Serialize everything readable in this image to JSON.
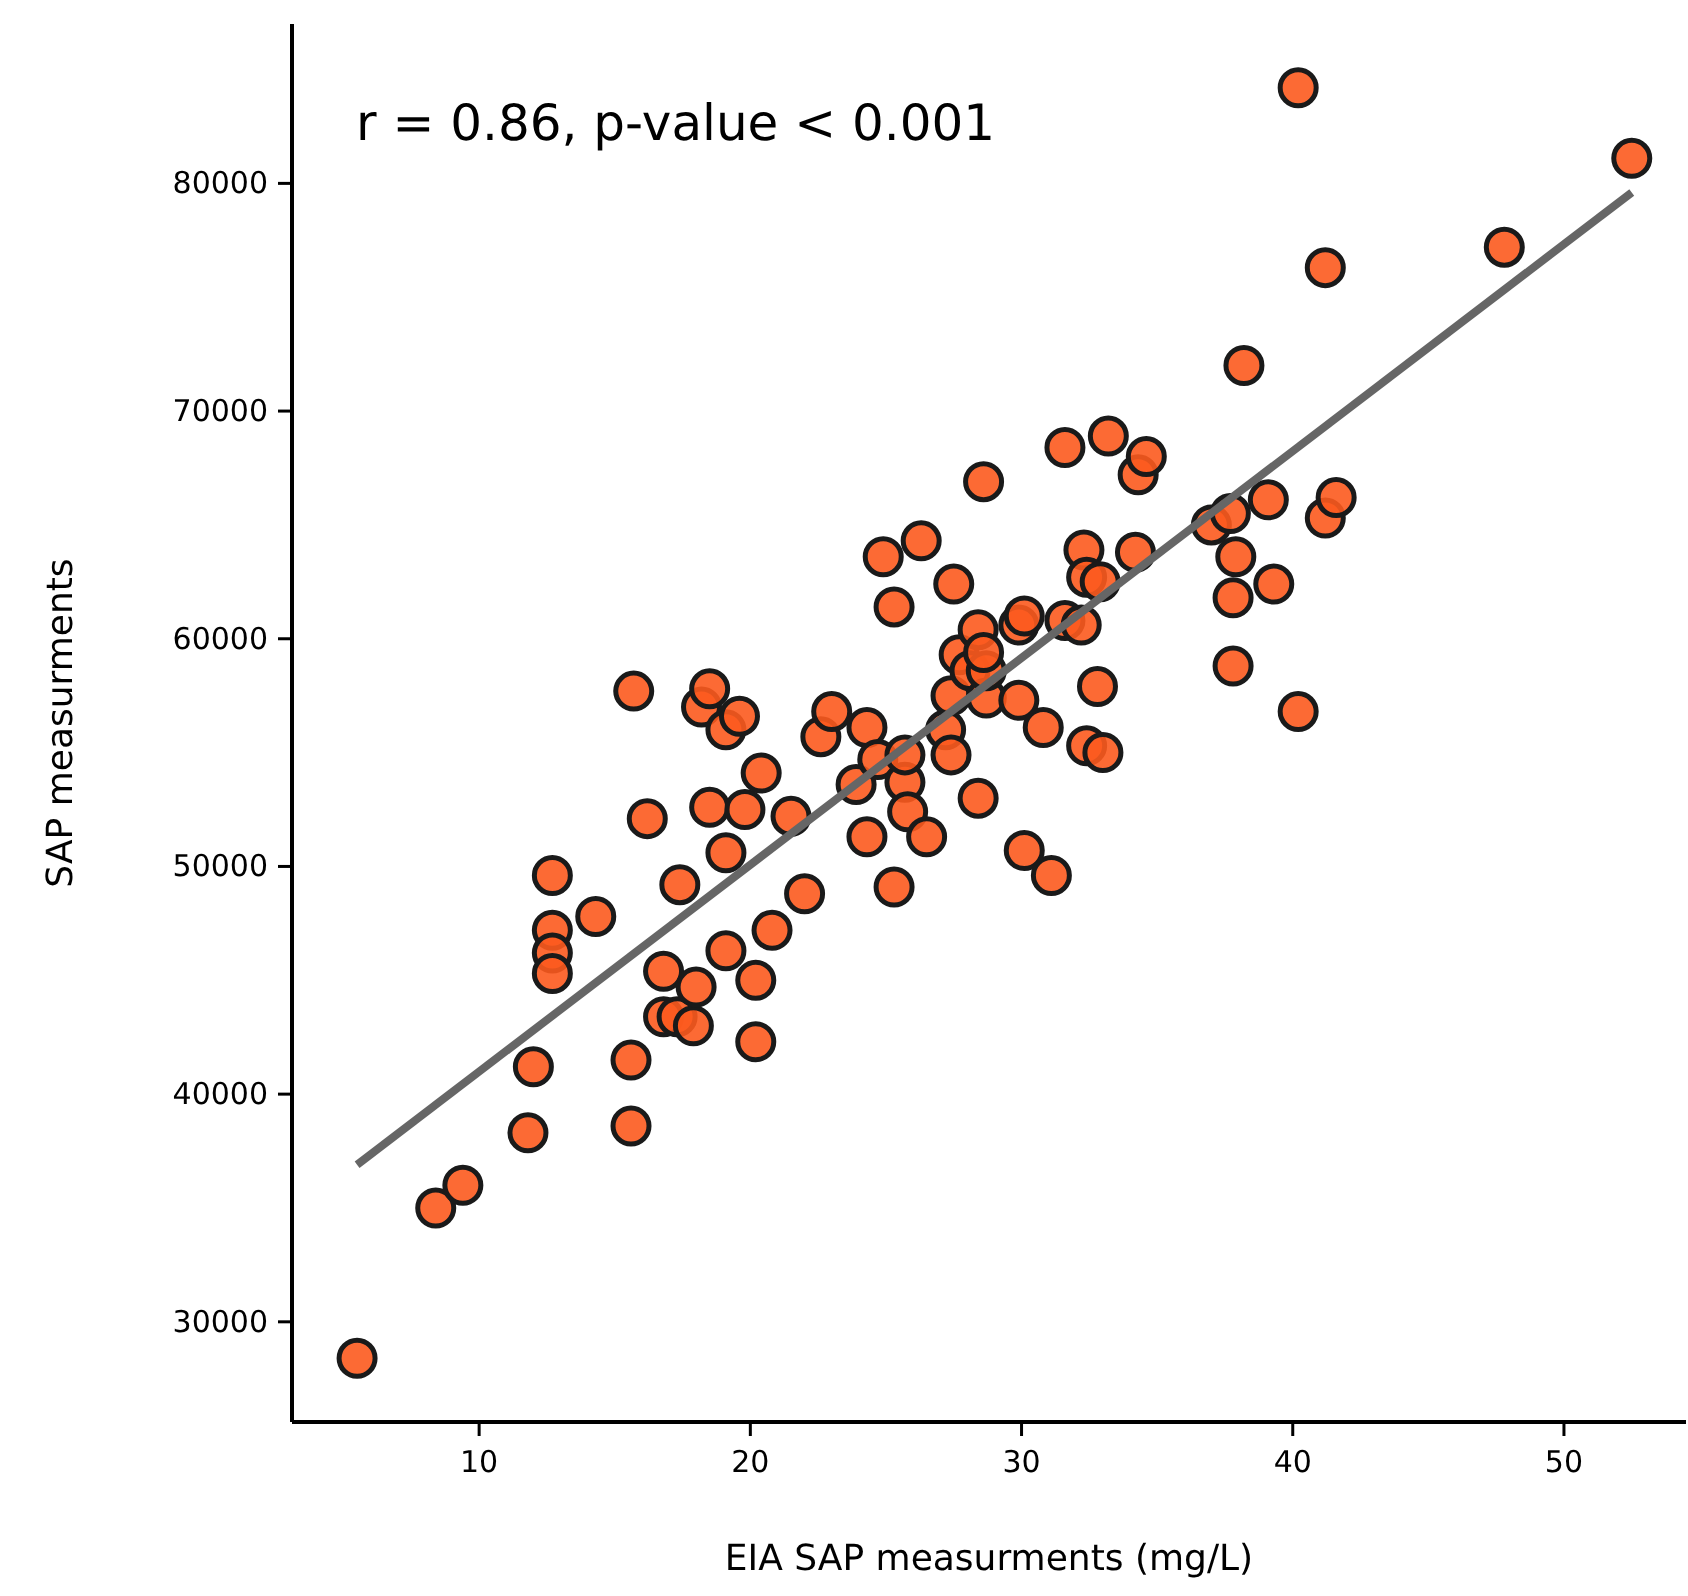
{
  "chart_data": {
    "type": "scatter",
    "xlabel": "EIA SAP measurments (mg/L)",
    "ylabel": "SAP measurments",
    "annotations": [
      "r = 0.86, p-value < 0.001"
    ],
    "xlim": [
      3.1,
      54.5
    ],
    "ylim": [
      25600,
      87000
    ],
    "xticks": [
      10,
      20,
      30,
      40,
      50
    ],
    "yticks": [
      30000,
      40000,
      50000,
      60000,
      70000,
      80000
    ],
    "grid": false,
    "series": [
      {
        "marker": "circle",
        "color": "#fc5a1e",
        "x": [
          5.5,
          8.4,
          9.4,
          11.8,
          12.0,
          12.7,
          12.7,
          12.7,
          12.7,
          14.3,
          15.6,
          15.6,
          15.7,
          16.2,
          16.8,
          16.8,
          17.3,
          17.4,
          17.9,
          18.0,
          18.2,
          18.5,
          18.5,
          19.1,
          19.1,
          19.1,
          19.6,
          19.8,
          20.2,
          20.2,
          20.4,
          20.8,
          21.5,
          22.0,
          22.6,
          23.0,
          23.9,
          24.3,
          24.3,
          24.7,
          24.9,
          25.3,
          25.3,
          25.7,
          25.7,
          25.8,
          26.3,
          26.5,
          27.2,
          27.4,
          27.5,
          27.4,
          27.7,
          28.1,
          28.4,
          28.4,
          28.6,
          28.7,
          28.7,
          28.6,
          29.9,
          29.9,
          30.1,
          30.1,
          30.8,
          31.1,
          31.6,
          31.6,
          32.2,
          32.3,
          32.4,
          32.4,
          32.8,
          32.9,
          33.0,
          33.2,
          34.3,
          34.6,
          34.2,
          37.0,
          37.7,
          37.8,
          37.8,
          37.9,
          38.2,
          39.1,
          39.3,
          40.2,
          40.2,
          41.2,
          41.2,
          41.6,
          47.8,
          52.5
        ],
        "values": [
          28400,
          35000,
          36000,
          38300,
          41200,
          49600,
          47200,
          46200,
          45300,
          47800,
          38600,
          41500,
          57700,
          52100,
          45400,
          43400,
          43400,
          49200,
          43000,
          44700,
          57000,
          57800,
          52600,
          56000,
          50600,
          46300,
          56600,
          52500,
          45000,
          42300,
          54100,
          47200,
          52200,
          48800,
          55700,
          56800,
          53600,
          51300,
          56100,
          54700,
          63600,
          61400,
          49100,
          53700,
          54900,
          52400,
          64300,
          51300,
          56000,
          54900,
          62400,
          57500,
          59300,
          58600,
          60400,
          53000,
          66900,
          57400,
          58600,
          59400,
          60600,
          57300,
          50700,
          61000,
          56100,
          49600,
          68400,
          60800,
          60600,
          63900,
          62700,
          55300,
          57900,
          62500,
          55000,
          68900,
          67200,
          68000,
          63800,
          65000,
          65500,
          61800,
          58800,
          63600,
          72000,
          66100,
          62400,
          56800,
          84200,
          76300,
          65300,
          66200,
          77200,
          81100
        ]
      },
      {
        "type": "line",
        "color": "#666666",
        "line_style": "solid",
        "x": [
          5.5,
          52.5
        ],
        "values": [
          36900,
          79600
        ]
      }
    ]
  }
}
